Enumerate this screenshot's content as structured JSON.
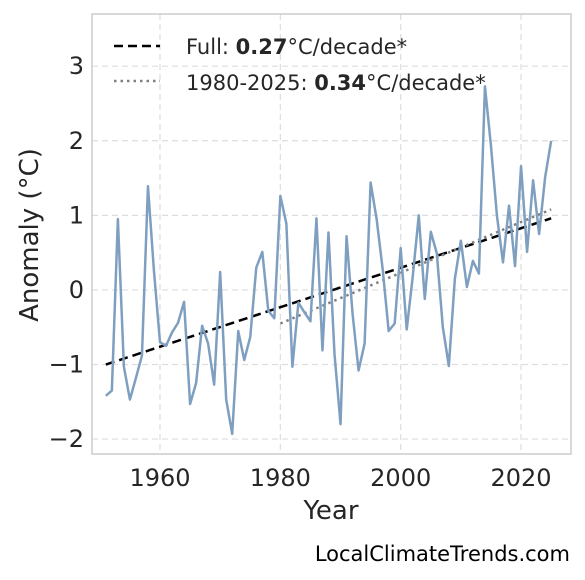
{
  "chart_data": {
    "type": "line",
    "title": "",
    "xlabel": "Year",
    "ylabel": "Anomaly (°C)",
    "xlim": [
      1948.7,
      2028.3
    ],
    "ylim": [
      -2.2,
      3.7
    ],
    "xticks": [
      1960,
      1980,
      2000,
      2020
    ],
    "yticks": [
      -2,
      -1,
      0,
      1,
      2,
      3
    ],
    "ytick_labels": [
      "−2",
      "−1",
      "0",
      "1",
      "2",
      "3"
    ],
    "grid": true,
    "legend_position": "top-left",
    "x": [
      1951,
      1952,
      1953,
      1954,
      1955,
      1956,
      1957,
      1958,
      1959,
      1960,
      1961,
      1962,
      1963,
      1964,
      1965,
      1966,
      1967,
      1968,
      1969,
      1970,
      1971,
      1972,
      1973,
      1974,
      1975,
      1976,
      1977,
      1978,
      1979,
      1980,
      1981,
      1982,
      1983,
      1984,
      1985,
      1986,
      1987,
      1988,
      1989,
      1990,
      1991,
      1992,
      1993,
      1994,
      1995,
      1996,
      1997,
      1998,
      1999,
      2000,
      2001,
      2002,
      2003,
      2004,
      2005,
      2006,
      2007,
      2008,
      2009,
      2010,
      2011,
      2012,
      2013,
      2014,
      2015,
      2016,
      2017,
      2018,
      2019,
      2020,
      2021,
      2022,
      2023,
      2024,
      2025
    ],
    "series": [
      {
        "name": "",
        "color": "#7f9fc0",
        "values": [
          -1.42,
          -1.35,
          0.95,
          -1.03,
          -1.47,
          -1.18,
          -0.88,
          1.39,
          0.25,
          -0.7,
          -0.75,
          -0.57,
          -0.44,
          -0.16,
          -1.53,
          -1.25,
          -0.48,
          -0.72,
          -1.27,
          0.24,
          -1.47,
          -1.93,
          -0.55,
          -0.94,
          -0.63,
          0.3,
          0.51,
          -0.28,
          -0.38,
          1.26,
          0.89,
          -1.03,
          -0.17,
          -0.3,
          -0.42,
          0.96,
          -0.81,
          0.77,
          -0.86,
          -1.8,
          0.72,
          -0.32,
          -1.08,
          -0.72,
          1.44,
          0.95,
          0.28,
          -0.55,
          -0.45,
          0.56,
          -0.53,
          0.18,
          1.0,
          -0.12,
          0.78,
          0.49,
          -0.5,
          -1.02,
          0.15,
          0.66,
          0.04,
          0.39,
          0.22,
          2.73,
          1.93,
          0.99,
          0.37,
          1.13,
          0.32,
          1.66,
          0.51,
          1.47,
          0.75,
          1.51,
          2.0
        ]
      }
    ],
    "trends": [
      {
        "label": "Full: ",
        "value": "0.27",
        "unit": "°C/decade*",
        "style": "dashed",
        "color": "#000000",
        "x": [
          1951,
          2025
        ],
        "y": [
          -1.0,
          0.96
        ]
      },
      {
        "label": "1980-2025: ",
        "value": "0.34",
        "unit": "°C/decade*",
        "style": "dotted",
        "color": "#808080",
        "x": [
          1980,
          2025
        ],
        "y": [
          -0.45,
          1.08
        ]
      }
    ],
    "credit": "LocalClimateTrends.com"
  }
}
